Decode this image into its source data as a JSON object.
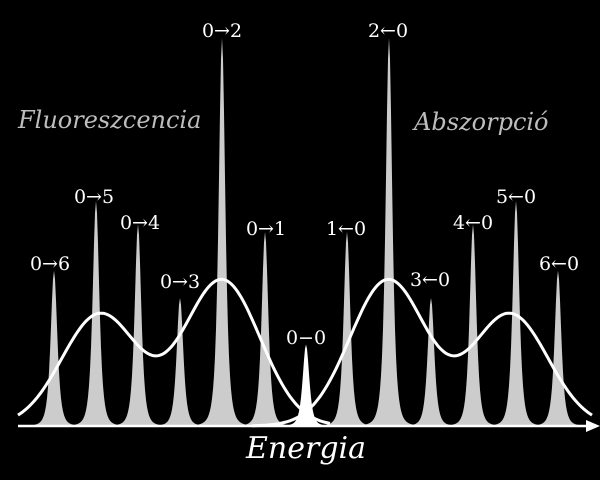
{
  "left_title": "Fluoreszcencia",
  "right_title": "Abszorpció",
  "axis_label": "Energia",
  "center_label": "0−0",
  "colors": {
    "background": "#000000",
    "peak_fill": "#cccccc",
    "center_fill": "#ffffff",
    "envelope": "#ffffff",
    "axis": "#ffffff"
  },
  "fluorescence_peaks": [
    {
      "label": "0→6",
      "height": 0.4
    },
    {
      "label": "0→5",
      "height": 0.58
    },
    {
      "label": "0→4",
      "height": 0.52
    },
    {
      "label": "0→3",
      "height": 0.33
    },
    {
      "label": "0→2",
      "height": 1.0
    },
    {
      "label": "0→1",
      "height": 0.5
    }
  ],
  "absorption_peaks": [
    {
      "label": "1←0",
      "height": 0.5
    },
    {
      "label": "2←0",
      "height": 1.0
    },
    {
      "label": "3←0",
      "height": 0.33
    },
    {
      "label": "4←0",
      "height": 0.52
    },
    {
      "label": "5←0",
      "height": 0.58
    },
    {
      "label": "6←0",
      "height": 0.4
    }
  ],
  "center_peak": {
    "height": 0.21
  }
}
